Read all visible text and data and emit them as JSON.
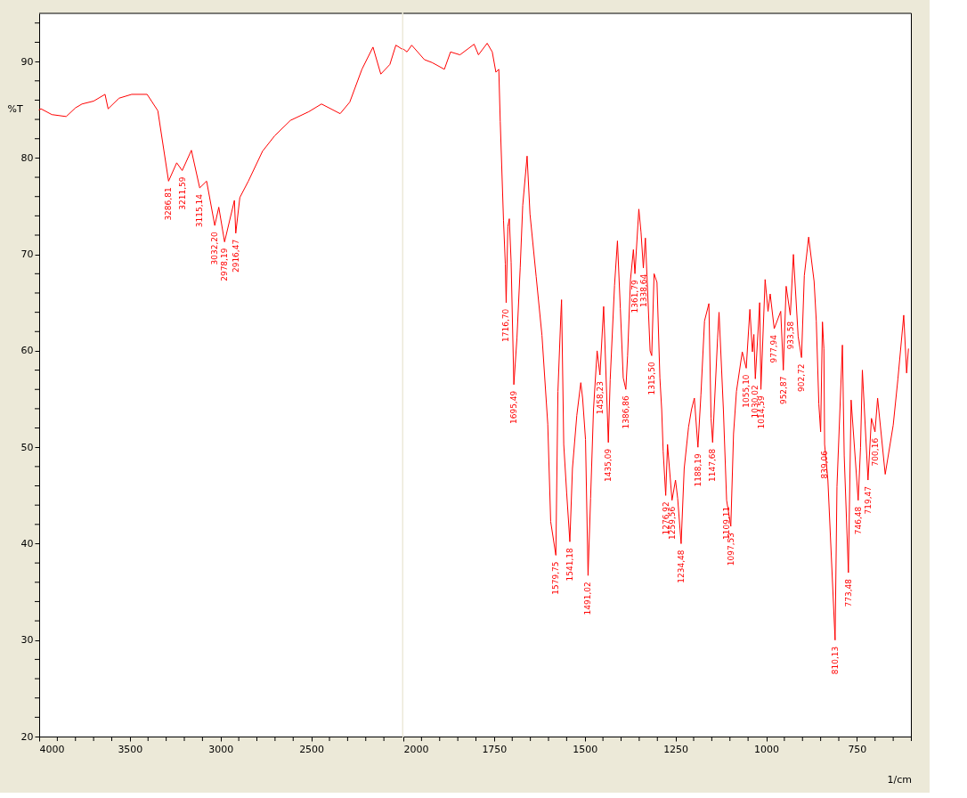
{
  "chart_data": [
    {
      "type": "line",
      "ylabel": "%T",
      "xlim": [
        4000,
        2000
      ],
      "ylim": [
        20,
        95
      ],
      "xticks": [
        4000,
        {
          "value": 3900,
          "label": null
        },
        {
          "value": 3800,
          "label": null
        },
        {
          "value": 3700,
          "label": null
        },
        {
          "value": 3600,
          "label": null
        },
        3500,
        {
          "value": 3400,
          "label": null
        },
        {
          "value": 3300,
          "label": null
        },
        {
          "value": 3200,
          "label": null
        },
        {
          "value": 3100,
          "label": null
        },
        3000,
        {
          "value": 2900,
          "label": null
        },
        {
          "value": 2800,
          "label": null
        },
        {
          "value": 2700,
          "label": null
        },
        {
          "value": 2600,
          "label": null
        },
        2500,
        {
          "value": 2400,
          "label": null
        },
        {
          "value": 2300,
          "label": null
        },
        {
          "value": 2200,
          "label": null
        },
        {
          "value": 2100,
          "label": null
        }
      ],
      "yticks": [
        20,
        {
          "value": 22,
          "label": null
        },
        {
          "value": 24,
          "label": null
        },
        {
          "value": 26,
          "label": null
        },
        {
          "value": 28,
          "label": null
        },
        30,
        {
          "value": 32,
          "label": null
        },
        {
          "value": 34,
          "label": null
        },
        {
          "value": 36,
          "label": null
        },
        {
          "value": 38,
          "label": null
        },
        40,
        {
          "value": 42,
          "label": null
        },
        {
          "value": 44,
          "label": null
        },
        {
          "value": 46,
          "label": null
        },
        {
          "value": 48,
          "label": null
        },
        50,
        {
          "value": 52,
          "label": null
        },
        {
          "value": 54,
          "label": null
        },
        {
          "value": 56,
          "label": null
        },
        {
          "value": 58,
          "label": null
        },
        60,
        {
          "value": 62,
          "label": null
        },
        {
          "value": 64,
          "label": null
        },
        {
          "value": 66,
          "label": null
        },
        {
          "value": 68,
          "label": null
        },
        70,
        {
          "value": 72,
          "label": null
        },
        {
          "value": 74,
          "label": null
        },
        {
          "value": 76,
          "label": null
        },
        {
          "value": 78,
          "label": null
        },
        80,
        {
          "value": 82,
          "label": null
        },
        {
          "value": 84,
          "label": null
        },
        {
          "value": 86,
          "label": null
        },
        {
          "value": 88,
          "label": null
        },
        90,
        {
          "value": 92,
          "label": null
        },
        {
          "value": 94,
          "label": null
        }
      ],
      "grid": false,
      "marker": "none",
      "line_style": "solid",
      "series": [
        {
          "color": "#ff0000",
          "x": [
            4000,
            3990,
            3930,
            3851,
            3800,
            3764,
            3700,
            3637,
            3620,
            3560,
            3490,
            3405,
            3346,
            3286.81,
            3242,
            3211.59,
            3161,
            3115.14,
            3077,
            3032.2,
            3010,
            2978.19,
            2924,
            2916.47,
            2894,
            2847,
            2769,
            2702,
            2615,
            2514,
            2444,
            2341,
            2288,
            2221,
            2160,
            2117,
            2067,
            2034,
            2000
          ],
          "values": [
            85.0,
            85.1,
            84.5,
            84.3,
            85.2,
            85.6,
            85.9,
            86.6,
            85.1,
            86.2,
            86.6,
            86.6,
            84.9,
            77.6,
            79.5,
            78.7,
            80.8,
            76.9,
            77.6,
            73.0,
            74.9,
            71.3,
            75.6,
            72.2,
            75.9,
            77.6,
            80.7,
            82.3,
            83.9,
            84.8,
            85.6,
            84.6,
            85.8,
            89.2,
            91.5,
            88.7,
            89.7,
            91.7,
            91.3
          ]
        }
      ],
      "annotations": [
        {
          "text": "3286,81",
          "x": 3286.81,
          "y": 77.6
        },
        {
          "text": "3211,59",
          "x": 3211.59,
          "y": 78.7
        },
        {
          "text": "3115,14",
          "x": 3115.14,
          "y": 76.9
        },
        {
          "text": "3032,20",
          "x": 3032.2,
          "y": 73.0
        },
        {
          "text": "2978,19",
          "x": 2978.19,
          "y": 71.3
        },
        {
          "text": "2916,47",
          "x": 2916.47,
          "y": 72.2
        }
      ]
    },
    {
      "type": "line",
      "xlabel": "1/cm",
      "xlim": [
        2000,
        600
      ],
      "ylim": [
        20,
        95
      ],
      "tick_labels": "x",
      "xticks": [
        2000,
        {
          "value": 1950,
          "label": null
        },
        {
          "value": 1900,
          "label": null
        },
        {
          "value": 1850,
          "label": null
        },
        {
          "value": 1800,
          "label": null
        },
        1750,
        {
          "value": 1700,
          "label": null
        },
        {
          "value": 1650,
          "label": null
        },
        {
          "value": 1600,
          "label": null
        },
        {
          "value": 1550,
          "label": null
        },
        1500,
        {
          "value": 1450,
          "label": null
        },
        {
          "value": 1400,
          "label": null
        },
        {
          "value": 1350,
          "label": null
        },
        {
          "value": 1300,
          "label": null
        },
        1250,
        {
          "value": 1200,
          "label": null
        },
        {
          "value": 1150,
          "label": null
        },
        {
          "value": 1100,
          "label": null
        },
        {
          "value": 1050,
          "label": null
        },
        1000,
        {
          "value": 950,
          "label": null
        },
        {
          "value": 900,
          "label": null
        },
        {
          "value": 850,
          "label": null
        },
        {
          "value": 800,
          "label": null
        },
        750,
        {
          "value": 700,
          "label": null
        },
        {
          "value": 650,
          "label": null
        },
        {
          "value": 600,
          "label": null
        }
      ],
      "grid": false,
      "marker": "none",
      "line_style": "solid",
      "series": [
        {
          "color": "#ff0000",
          "x": [
            2000,
            1990,
            1977,
            1942,
            1921,
            1887,
            1870,
            1844,
            1805,
            1793,
            1769,
            1755,
            1745,
            1737,
            1733,
            1724,
            1719,
            1716.7,
            1712,
            1708,
            1703,
            1695.49,
            1687,
            1678,
            1671,
            1659,
            1651,
            1634,
            1618,
            1602,
            1594,
            1579.75,
            1574,
            1566,
            1564,
            1558,
            1550,
            1541.18,
            1534,
            1522,
            1511,
            1506,
            1498,
            1491.02,
            1484,
            1476,
            1466,
            1458.23,
            1448,
            1435.09,
            1430,
            1418,
            1410,
            1402,
            1394,
            1386.86,
            1382,
            1374,
            1366,
            1361.79,
            1351,
            1345,
            1338.64,
            1333,
            1320,
            1315.5,
            1309,
            1301,
            1293,
            1288,
            1284,
            1276.92,
            1272,
            1259.56,
            1250,
            1244,
            1234.48,
            1226,
            1214,
            1206,
            1198,
            1188.19,
            1180,
            1170,
            1158,
            1152,
            1147.68,
            1134,
            1130,
            1118,
            1109.11,
            1097.53,
            1090,
            1082,
            1066,
            1055.1,
            1045,
            1038,
            1034,
            1030.02,
            1018,
            1014.59,
            1003,
            995,
            989,
            977.94,
            960,
            952.87,
            945,
            933.58,
            925,
            912,
            902.72,
            895,
            883,
            868,
            862,
            855,
            850,
            845,
            841,
            839.06,
            830,
            810.13,
            805,
            790,
            785,
            773.48,
            766,
            746.48,
            740,
            735,
            719.47,
            710,
            700.16,
            693,
            672,
            650,
            637,
            621,
            613,
            608
          ],
          "values": [
            91.3,
            91.0,
            91.7,
            90.2,
            89.9,
            89.2,
            91.0,
            90.7,
            91.8,
            90.7,
            91.9,
            91.0,
            88.9,
            89.2,
            83.8,
            73.5,
            69.0,
            65.0,
            72.9,
            73.7,
            69.2,
            56.5,
            61.3,
            68.6,
            75.1,
            80.2,
            74.2,
            67.7,
            61.6,
            52.4,
            42.3,
            38.8,
            55.8,
            63.7,
            65.3,
            50.3,
            45.3,
            40.2,
            47.8,
            53.3,
            56.7,
            55.1,
            50.8,
            36.7,
            44.7,
            53.9,
            60.0,
            57.5,
            64.6,
            50.5,
            57.0,
            66.8,
            71.4,
            64.4,
            57.2,
            56.0,
            59.5,
            67.4,
            70.5,
            68.0,
            74.7,
            72.3,
            68.6,
            71.7,
            60.0,
            59.5,
            68.0,
            67.1,
            57.2,
            53.9,
            49.6,
            45.0,
            50.3,
            44.5,
            46.6,
            44.7,
            40.0,
            47.8,
            52.1,
            53.9,
            55.1,
            50.0,
            55.4,
            63.1,
            64.9,
            53.0,
            50.5,
            61.3,
            64.0,
            53.9,
            44.5,
            41.8,
            51.4,
            55.8,
            59.9,
            58.2,
            64.3,
            59.9,
            61.7,
            57.1,
            65.0,
            56.0,
            67.4,
            64.1,
            65.9,
            62.3,
            64.1,
            58.0,
            66.7,
            63.7,
            70.0,
            61.5,
            59.3,
            67.8,
            71.8,
            67.2,
            63.1,
            54.5,
            51.6,
            63.0,
            60.2,
            50.3,
            46.6,
            30.0,
            45.9,
            60.6,
            49.1,
            37.0,
            54.9,
            44.5,
            50.0,
            58.0,
            46.6,
            53.0,
            51.6,
            55.1,
            47.2,
            52.3,
            57.1,
            63.7,
            57.7,
            60.2
          ]
        }
      ],
      "annotations": [
        {
          "text": "1716,70",
          "x": 1716.7,
          "y": 65.0
        },
        {
          "text": "1695,49",
          "x": 1695.49,
          "y": 56.5
        },
        {
          "text": "1579,75",
          "x": 1579.75,
          "y": 38.8
        },
        {
          "text": "1541,18",
          "x": 1541.18,
          "y": 40.2
        },
        {
          "text": "1491,02",
          "x": 1491.02,
          "y": 36.7
        },
        {
          "text": "1458,23",
          "x": 1458.23,
          "y": 57.5
        },
        {
          "text": "1435,09",
          "x": 1435.09,
          "y": 50.5
        },
        {
          "text": "1386,86",
          "x": 1386.86,
          "y": 56.0
        },
        {
          "text": "1361,79",
          "x": 1361.79,
          "y": 68.0
        },
        {
          "text": "1338,64",
          "x": 1338.64,
          "y": 68.6
        },
        {
          "text": "1315,50",
          "x": 1315.5,
          "y": 59.5
        },
        {
          "text": "1276,92",
          "x": 1276.92,
          "y": 45.0
        },
        {
          "text": "1259,56",
          "x": 1259.56,
          "y": 44.5
        },
        {
          "text": "1234,48",
          "x": 1234.48,
          "y": 40.0
        },
        {
          "text": "1188,19",
          "x": 1188.19,
          "y": 50.0
        },
        {
          "text": "1147,68",
          "x": 1147.68,
          "y": 50.5
        },
        {
          "text": "1109,11",
          "x": 1109.11,
          "y": 44.5
        },
        {
          "text": "1097,53",
          "x": 1097.53,
          "y": 41.8
        },
        {
          "text": "1055,10",
          "x": 1055.1,
          "y": 58.2
        },
        {
          "text": "1030,02",
          "x": 1030.02,
          "y": 57.1
        },
        {
          "text": "1014,59",
          "x": 1014.59,
          "y": 56.0
        },
        {
          "text": "977,94",
          "x": 977.94,
          "y": 62.3
        },
        {
          "text": "952,87",
          "x": 952.87,
          "y": 58.0
        },
        {
          "text": "933,58",
          "x": 933.58,
          "y": 63.7
        },
        {
          "text": "902,72",
          "x": 902.72,
          "y": 59.3
        },
        {
          "text": "839,06",
          "x": 839.06,
          "y": 50.3
        },
        {
          "text": "810,13",
          "x": 810.13,
          "y": 30.0
        },
        {
          "text": "773,48",
          "x": 773.48,
          "y": 37.0
        },
        {
          "text": "746,48",
          "x": 746.48,
          "y": 44.5
        },
        {
          "text": "719,47",
          "x": 719.47,
          "y": 46.6
        },
        {
          "text": "700,16",
          "x": 700.16,
          "y": 51.6
        }
      ]
    }
  ]
}
